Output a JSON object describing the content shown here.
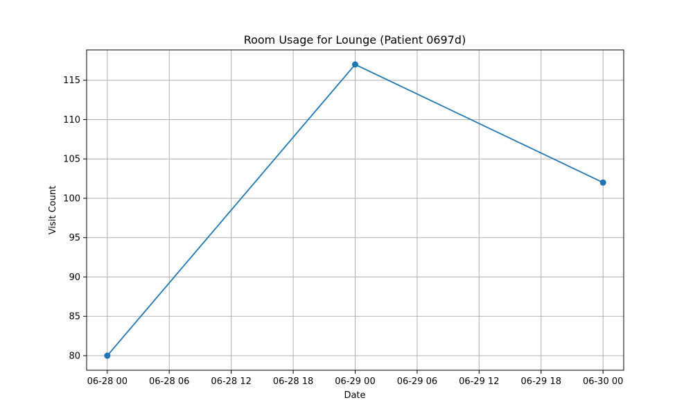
{
  "chart_data": {
    "type": "line",
    "title": "Room Usage for Lounge (Patient 0697d)",
    "xlabel": "Date",
    "ylabel": "Visit Count",
    "x_ticks": [
      "06-28 00",
      "06-28 06",
      "06-28 12",
      "06-28 18",
      "06-29 00",
      "06-29 06",
      "06-29 12",
      "06-29 18",
      "06-30 00"
    ],
    "x_tick_times": [
      "06-28 00:00",
      "06-28 06:00",
      "06-28 12:00",
      "06-28 18:00",
      "06-29 00:00",
      "06-29 06:00",
      "06-29 12:00",
      "06-29 18:00",
      "06-30 00:00"
    ],
    "y_ticks": [
      80,
      85,
      90,
      95,
      100,
      105,
      110,
      115
    ],
    "xlim": [
      "06-27 22:00",
      "06-30 02:00"
    ],
    "ylim": [
      78.15,
      118.85
    ],
    "grid": true,
    "series": [
      {
        "color": "#1f77b4",
        "marker": "circle",
        "x": [
          "06-28 00:00",
          "06-29 00:00",
          "06-30 00:00"
        ],
        "y": [
          80,
          117,
          102
        ]
      }
    ]
  }
}
